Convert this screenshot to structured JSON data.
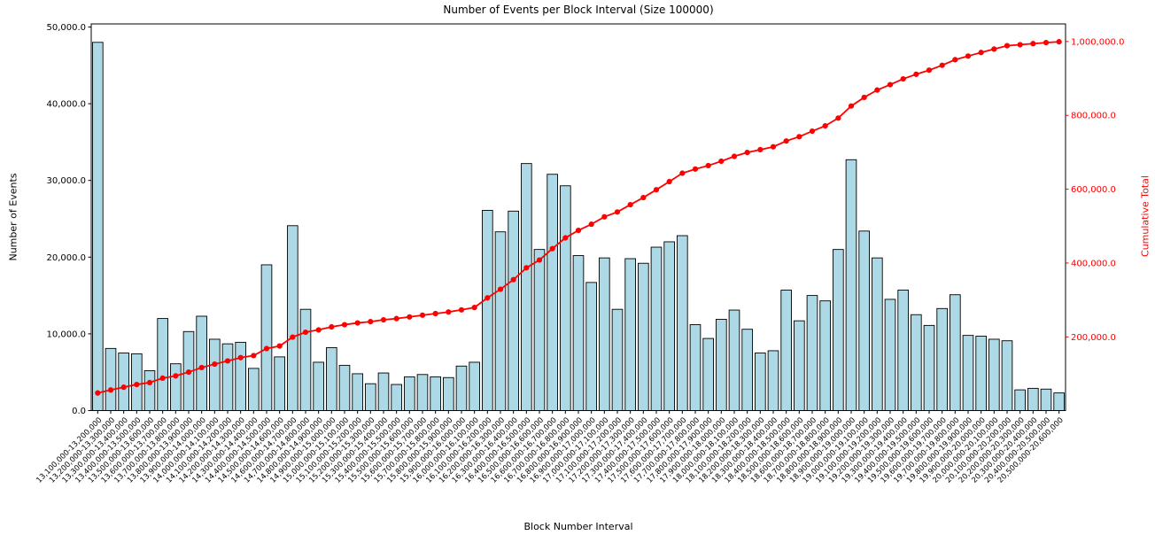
{
  "title": "Number of Events per Block Interval (Size 100000)",
  "chart_data": {
    "type": "bar",
    "title": "Number of Events per Block Interval (Size 100000)",
    "xlabel": "Block Number Interval",
    "ylabel_left": "Number of Events",
    "ylabel_right": "Cumulative Total",
    "grid": false,
    "legend": null,
    "colors": {
      "bar_fill": "#ADD8E6",
      "bar_edge": "#000000",
      "line": "#FF0000",
      "right_axis_text": "#FF0000",
      "left_axis_text": "#000000",
      "background": "#FFFFFF"
    },
    "y_axis_left": {
      "tick_values": [
        0,
        10000,
        20000,
        30000,
        40000,
        50000
      ],
      "tick_labels": [
        "0.0",
        "10,000.0",
        "20,000.0",
        "30,000.0",
        "40,000.0",
        "50,000.0"
      ],
      "range": [
        0,
        50400
      ]
    },
    "y_axis_right": {
      "tick_values": [
        200000,
        400000,
        600000,
        800000,
        1000000
      ],
      "tick_labels": [
        "200,000.0",
        "400,000.0",
        "600,000.0",
        "800,000.0",
        "1,000,000.0"
      ],
      "range": [
        400,
        1047600
      ]
    },
    "categories": [
      "13,100,000-13,200,000",
      "13,200,000-13,300,000",
      "13,300,000-13,400,000",
      "13,400,000-13,500,000",
      "13,500,000-13,600,000",
      "13,600,000-13,700,000",
      "13,700,000-13,800,000",
      "13,800,000-13,900,000",
      "13,900,000-14,000,000",
      "14,000,000-14,100,000",
      "14,100,000-14,200,000",
      "14,200,000-14,300,000",
      "14,300,000-14,400,000",
      "14,400,000-14,500,000",
      "14,500,000-14,600,000",
      "14,600,000-14,700,000",
      "14,700,000-14,800,000",
      "14,800,000-14,900,000",
      "14,900,000-15,000,000",
      "15,000,000-15,100,000",
      "15,100,000-15,200,000",
      "15,200,000-15,300,000",
      "15,300,000-15,400,000",
      "15,400,000-15,500,000",
      "15,500,000-15,600,000",
      "15,600,000-15,700,000",
      "15,700,000-15,800,000",
      "15,800,000-15,900,000",
      "15,900,000-16,000,000",
      "16,000,000-16,100,000",
      "16,100,000-16,200,000",
      "16,200,000-16,300,000",
      "16,300,000-16,400,000",
      "16,400,000-16,500,000",
      "16,500,000-16,600,000",
      "16,600,000-16,700,000",
      "16,700,000-16,800,000",
      "16,800,000-16,900,000",
      "16,900,000-17,000,000",
      "17,000,000-17,100,000",
      "17,100,000-17,200,000",
      "17,200,000-17,300,000",
      "17,300,000-17,400,000",
      "17,400,000-17,500,000",
      "17,500,000-17,600,000",
      "17,600,000-17,700,000",
      "17,700,000-17,800,000",
      "17,800,000-17,900,000",
      "17,900,000-18,000,000",
      "18,000,000-18,100,000",
      "18,100,000-18,200,000",
      "18,200,000-18,300,000",
      "18,300,000-18,400,000",
      "18,400,000-18,500,000",
      "18,500,000-18,600,000",
      "18,600,000-18,700,000",
      "18,700,000-18,800,000",
      "18,800,000-18,900,000",
      "18,900,000-19,000,000",
      "19,000,000-19,100,000",
      "19,100,000-19,200,000",
      "19,200,000-19,300,000",
      "19,300,000-19,400,000",
      "19,400,000-19,500,000",
      "19,500,000-19,600,000",
      "19,600,000-19,700,000",
      "19,700,000-19,800,000",
      "19,800,000-19,900,000",
      "19,900,000-20,000,000",
      "20,000,000-20,100,000",
      "20,100,000-20,200,000",
      "20,200,000-20,300,000",
      "20,300,000-20,400,000",
      "20,400,000-20,500,000",
      "20,500,000-20,600,000"
    ],
    "series": [
      {
        "name": "Number of Events",
        "type": "bar",
        "axis": "left",
        "values": [
          48000,
          8100,
          7500,
          7400,
          5200,
          12000,
          6100,
          10300,
          12300,
          9300,
          8700,
          8900,
          5500,
          19000,
          7000,
          24100,
          13200,
          6300,
          8200,
          5900,
          4800,
          3500,
          4900,
          3400,
          4400,
          4700,
          4400,
          4300,
          5800,
          6300,
          26100,
          23300,
          26000,
          32200,
          21000,
          30800,
          29300,
          20200,
          16700,
          19900,
          13200,
          19800,
          19200,
          21300,
          22000,
          22800,
          11200,
          9400,
          11900,
          13100,
          10600,
          7500,
          7800,
          15700,
          11700,
          15000,
          14300,
          21000,
          32700,
          23400,
          19900,
          14500,
          15700,
          12500,
          11100,
          13300,
          15100,
          9800,
          9700,
          9300,
          9100,
          2700,
          2900,
          2800,
          2300
        ]
      },
      {
        "name": "Cumulative Total",
        "type": "line",
        "axis": "right",
        "marker": "circle",
        "derived": "cumulative_sum_of_bar_values"
      }
    ]
  }
}
